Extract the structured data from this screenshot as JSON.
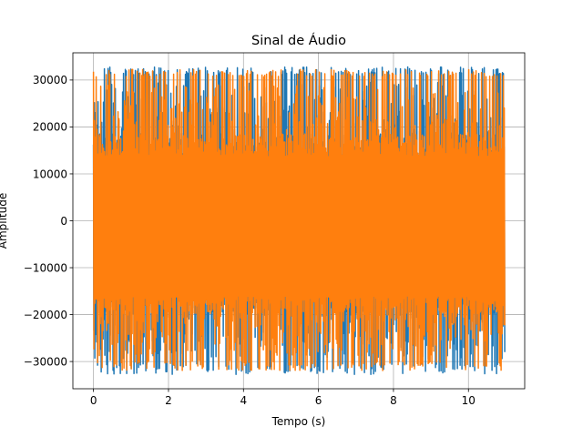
{
  "chart_data": {
    "type": "line",
    "title": "Sinal de Áudio",
    "xlabel": "Tempo (s)",
    "ylabel": "Amplitude",
    "xlim": [
      -0.55,
      11.5
    ],
    "ylim": [
      -35800,
      35800
    ],
    "xticks": [
      0,
      2,
      4,
      6,
      8,
      10
    ],
    "yticks": [
      -30000,
      -20000,
      -10000,
      0,
      10000,
      20000,
      30000
    ],
    "grid": true,
    "legend": "none",
    "duration_s": 10.95,
    "series": [
      {
        "color": "#1f77b4",
        "amplitude_max": 32767,
        "amplitude_min": -32768
      },
      {
        "color": "#ff7f0e",
        "amplitude_max": 32767,
        "amplitude_min": -32768
      }
    ]
  }
}
